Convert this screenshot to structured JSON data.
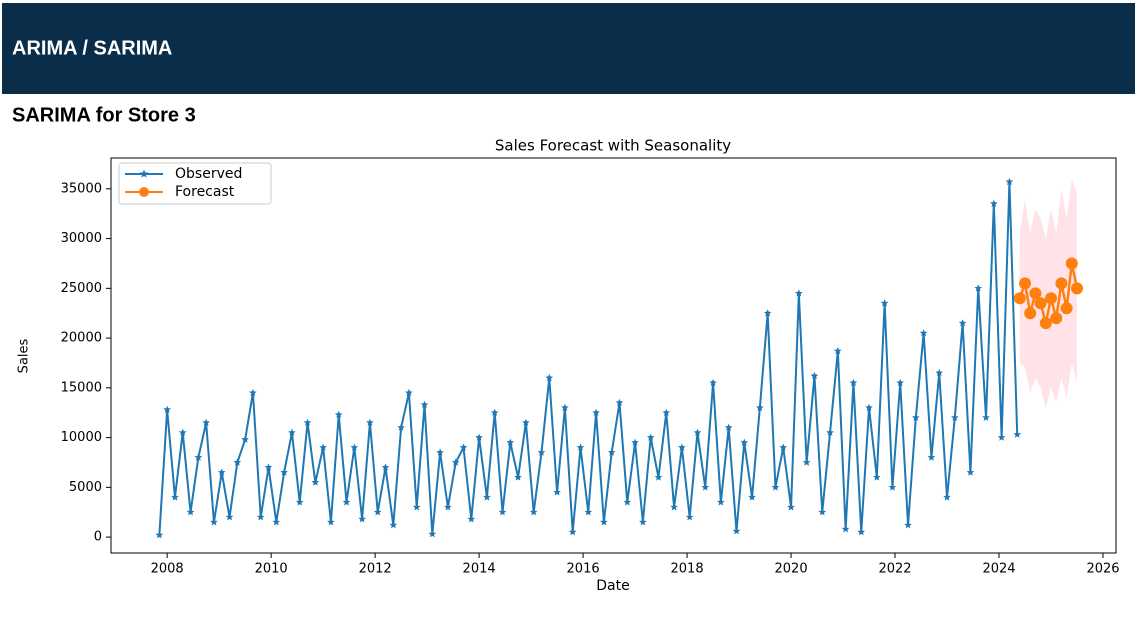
{
  "header": {
    "title": "ARIMA / SARIMA"
  },
  "section": {
    "title": "SARIMA for Store 3"
  },
  "chart_data": {
    "type": "line",
    "title": "Sales Forecast with Seasonality",
    "x_label": "Date",
    "y_label": "Sales",
    "x": [
      2007.85,
      2008.0,
      2008.15,
      2008.3,
      2008.45,
      2008.6,
      2008.75,
      2008.9,
      2009.05,
      2009.2,
      2009.35,
      2009.5,
      2009.65,
      2009.8,
      2009.95,
      2010.1,
      2010.25,
      2010.4,
      2010.55,
      2010.7,
      2010.85,
      2011.0,
      2011.15,
      2011.3,
      2011.45,
      2011.6,
      2011.75,
      2011.9,
      2012.05,
      2012.2,
      2012.35,
      2012.5,
      2012.65,
      2012.8,
      2012.95,
      2013.1,
      2013.25,
      2013.4,
      2013.55,
      2013.7,
      2013.85,
      2014.0,
      2014.15,
      2014.3,
      2014.45,
      2014.6,
      2014.75,
      2014.9,
      2015.05,
      2015.2,
      2015.35,
      2015.5,
      2015.65,
      2015.8,
      2015.95,
      2016.1,
      2016.25,
      2016.4,
      2016.55,
      2016.7,
      2016.85,
      2017.0,
      2017.15,
      2017.3,
      2017.45,
      2017.6,
      2017.75,
      2017.9,
      2018.05,
      2018.2,
      2018.35,
      2018.5,
      2018.65,
      2018.8,
      2018.95,
      2019.1,
      2019.25,
      2019.4,
      2019.55,
      2019.7,
      2019.85,
      2020.0,
      2020.15,
      2020.3,
      2020.45,
      2020.6,
      2020.75,
      2020.9,
      2021.05,
      2021.2,
      2021.35,
      2021.5,
      2021.65,
      2021.8,
      2021.95,
      2022.1,
      2022.25,
      2022.4,
      2022.55,
      2022.7,
      2022.85,
      2023.0,
      2023.15,
      2023.3,
      2023.45,
      2023.6,
      2023.75,
      2023.9,
      2024.05,
      2024.2,
      2024.35
    ],
    "series": [
      {
        "name": "Observed",
        "color": "#1f77b4",
        "marker": "star",
        "values": [
          200,
          12800,
          4000,
          10500,
          2500,
          8000,
          11500,
          1500,
          6500,
          2000,
          7500,
          9800,
          14500,
          2000,
          7000,
          1500,
          6500,
          10500,
          3500,
          11500,
          5500,
          9000,
          1500,
          12300,
          3500,
          9000,
          1800,
          11500,
          2500,
          7000,
          1200,
          11000,
          14500,
          3000,
          13300,
          300,
          8500,
          3000,
          7500,
          9000,
          1800,
          10000,
          4000,
          12500,
          2500,
          9500,
          6000,
          11500,
          2500,
          8500,
          16000,
          4500,
          13000,
          500,
          9000,
          2500,
          12500,
          1500,
          8500,
          13500,
          3500,
          9500,
          1500,
          10000,
          6000,
          12500,
          3000,
          9000,
          2000,
          10500,
          5000,
          15500,
          3500,
          11000,
          600,
          9500,
          4000,
          13000,
          22500,
          5000,
          9000,
          3000,
          24500,
          7500,
          16200,
          2500,
          10500,
          18700,
          800,
          15500,
          500,
          13000,
          6000,
          23500,
          5000,
          15500,
          1200,
          12000,
          20500,
          8000,
          16500,
          4000,
          12000,
          21500,
          6500,
          25000,
          12000,
          33500,
          10000,
          35700,
          10300
        ]
      },
      {
        "name": "Forecast",
        "color": "#ff7f0e",
        "marker": "circle",
        "x": [
          2024.4,
          2024.5,
          2024.6,
          2024.7,
          2024.8,
          2024.9,
          2025.0,
          2025.1,
          2025.2,
          2025.3,
          2025.4,
          2025.5
        ],
        "values": [
          24000,
          25500,
          22500,
          24500,
          23500,
          21500,
          24000,
          22000,
          25500,
          23000,
          27500,
          25000
        ]
      }
    ],
    "confidence": {
      "color": "#ffc0cb",
      "x": [
        2024.4,
        2024.5,
        2024.6,
        2024.7,
        2024.8,
        2024.9,
        2025.0,
        2025.1,
        2025.2,
        2025.3,
        2025.4,
        2025.5
      ],
      "lower": [
        17500,
        17000,
        14500,
        16000,
        15000,
        13000,
        15000,
        13500,
        16000,
        14000,
        17500,
        15500
      ],
      "upper": [
        30500,
        34000,
        30500,
        33000,
        32000,
        30000,
        33000,
        30500,
        35000,
        32000,
        36000,
        34500
      ]
    },
    "xlim": [
      2006.92,
      2026.25
    ],
    "ylim": [
      -1600,
      38100
    ],
    "xticks": [
      2008,
      2010,
      2012,
      2014,
      2016,
      2018,
      2020,
      2022,
      2024,
      2026
    ],
    "yticks": [
      0,
      5000,
      10000,
      15000,
      20000,
      25000,
      30000,
      35000
    ],
    "legend": "upper-left"
  }
}
